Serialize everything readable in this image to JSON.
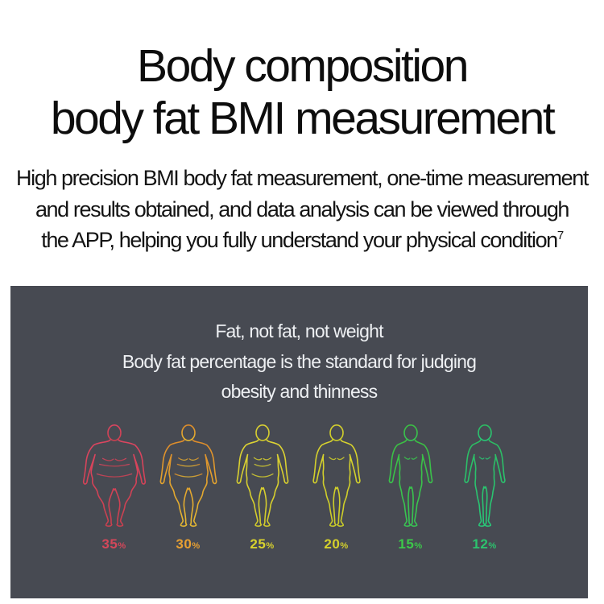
{
  "header": {
    "title_lines": [
      "Body composition",
      "body fat BMI measurement"
    ],
    "description_lines": [
      "High precision BMI body fat measurement, one-time measurement",
      "and results obtained, and data analysis can be viewed through",
      "the APP, helping you fully understand your physical condition"
    ],
    "description_superscript": "7"
  },
  "panel": {
    "background_color": "#474a52",
    "heading_lines": [
      "Fat, not fat, not weight",
      "Body fat percentage is the standard for judging",
      "obesity and thinness"
    ],
    "figures": [
      {
        "id": "body-fat-35",
        "percent": "35",
        "unit": "%",
        "build": 1.0,
        "stroke_top": "#dd4560",
        "stroke_bottom": "#c9404f",
        "label_color": "#d5475a"
      },
      {
        "id": "body-fat-30",
        "percent": "30",
        "unit": "%",
        "build": 0.78,
        "stroke_top": "#df8c2a",
        "stroke_bottom": "#e5b832",
        "label_color": "#e8a032"
      },
      {
        "id": "body-fat-25",
        "percent": "25",
        "unit": "%",
        "build": 0.6,
        "stroke_top": "#ddd333",
        "stroke_bottom": "#d2cb2b",
        "label_color": "#d9d32e"
      },
      {
        "id": "body-fat-20",
        "percent": "20",
        "unit": "%",
        "build": 0.44,
        "stroke_top": "#d8d22d",
        "stroke_bottom": "#cbcd28",
        "label_color": "#d5d12b"
      },
      {
        "id": "body-fat-15",
        "percent": "15",
        "unit": "%",
        "build": 0.3,
        "stroke_top": "#3bbf43",
        "stroke_bottom": "#38c553",
        "label_color": "#3cc94a"
      },
      {
        "id": "body-fat-12",
        "percent": "12",
        "unit": "%",
        "build": 0.2,
        "stroke_top": "#2cbd62",
        "stroke_bottom": "#28c878",
        "label_color": "#2cc46e"
      }
    ]
  }
}
